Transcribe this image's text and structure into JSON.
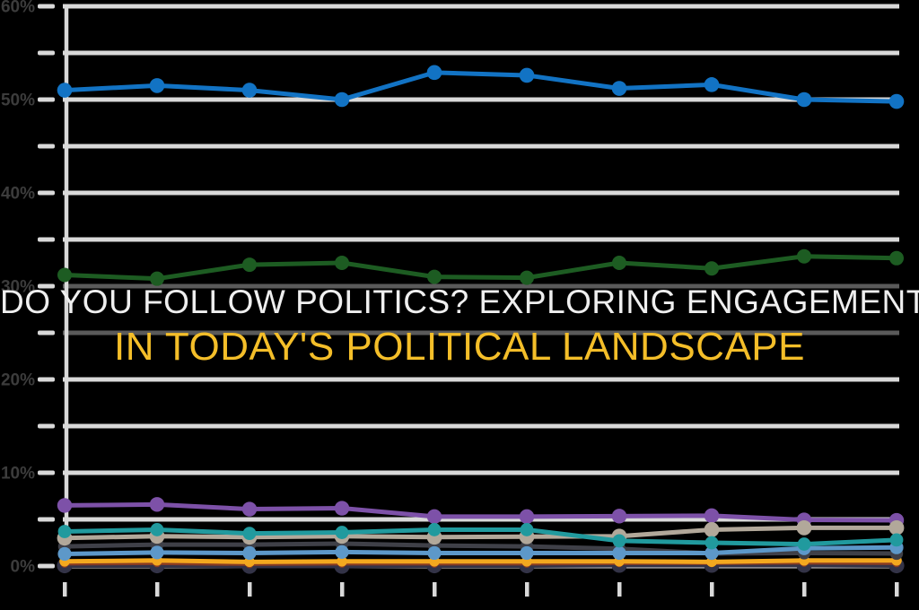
{
  "title": {
    "line1": "DO YOU FOLLOW POLITICS? EXPLORING ENGAGEMENT",
    "line2": "IN TODAY'S POLITICAL LANDSCAPE",
    "line1_color": "#efefef",
    "line2_color": "#f4be29"
  },
  "colors": {
    "background": "#000000",
    "gridline": "#d9d9d9",
    "dimmed_gridline": "#5a5a5a",
    "axis_label": "#3c3c3c",
    "tick": "#d9d9d9"
  },
  "chart_data": {
    "type": "line",
    "title": "DO YOU FOLLOW POLITICS? EXPLORING ENGAGEMENT IN TODAY'S POLITICAL LANDSCAPE",
    "xlabel": "",
    "ylabel": "",
    "x_points": 10,
    "x_tick_labels": [
      "",
      "",
      "",
      "",
      "",
      "",
      "",
      "",
      "",
      ""
    ],
    "y_axis": {
      "min": 0,
      "max": 60,
      "unit": "%",
      "major_tick_step": 10,
      "minor_tick_step": 5,
      "tick_labels": [
        "0%",
        "10%",
        "20%",
        "30%",
        "40%",
        "50%",
        "60%"
      ]
    },
    "grid": true,
    "legend_position": "none",
    "series": [
      {
        "name": "blue",
        "color": "#1273c4",
        "point_radius": 8.3,
        "values": [
          51.0,
          51.5,
          51.0,
          50.0,
          52.9,
          52.6,
          51.2,
          51.6,
          50.0,
          49.8
        ]
      },
      {
        "name": "dark-green",
        "color": "#1d5c22",
        "point_radius": 8.0,
        "values": [
          31.2,
          30.8,
          32.3,
          32.5,
          31.0,
          30.9,
          32.5,
          31.9,
          33.2,
          33.0
        ]
      },
      {
        "name": "purple",
        "color": "#7d51a8",
        "point_radius": 8.2,
        "values": [
          6.5,
          6.6,
          6.1,
          6.2,
          5.3,
          5.3,
          5.35,
          5.4,
          4.95,
          4.9
        ]
      },
      {
        "name": "navy",
        "color": "#333347",
        "point_radius": 8.6,
        "values": [
          0.05,
          0.05,
          0.0,
          0.0,
          0.05,
          0.05,
          0.1,
          0.1,
          0.1,
          0.05
        ]
      },
      {
        "name": "maroon",
        "color": "#8a3c22",
        "point_radius": 4.5,
        "values": [
          0.25,
          0.3,
          0.2,
          0.25,
          0.25,
          0.25,
          0.3,
          0.3,
          0.35,
          0.3
        ]
      },
      {
        "name": "orange",
        "color": "#f3a81f",
        "point_radius": 5.8,
        "values": [
          0.5,
          0.6,
          0.45,
          0.5,
          0.5,
          0.5,
          0.5,
          0.45,
          0.6,
          0.6
        ]
      },
      {
        "name": "dark-gray",
        "color": "#3f4048",
        "point_radius": 7.2,
        "values": [
          2.1,
          2.3,
          2.3,
          2.4,
          2.2,
          2.1,
          1.85,
          1.35,
          1.4,
          1.35
        ]
      },
      {
        "name": "steel-blue",
        "color": "#5d98c9",
        "point_radius": 7.6,
        "values": [
          1.3,
          1.45,
          1.4,
          1.5,
          1.4,
          1.4,
          1.4,
          1.4,
          1.9,
          2.0
        ]
      },
      {
        "name": "tan",
        "color": "#b2a89a",
        "point_radius": 8.4,
        "values": [
          3.0,
          3.2,
          3.1,
          3.2,
          3.1,
          3.15,
          3.2,
          3.9,
          4.1,
          4.1
        ]
      },
      {
        "name": "teal",
        "color": "#219a9e",
        "point_radius": 7.4,
        "values": [
          3.7,
          3.9,
          3.5,
          3.6,
          3.9,
          3.9,
          2.7,
          2.5,
          2.35,
          2.8
        ]
      }
    ]
  }
}
